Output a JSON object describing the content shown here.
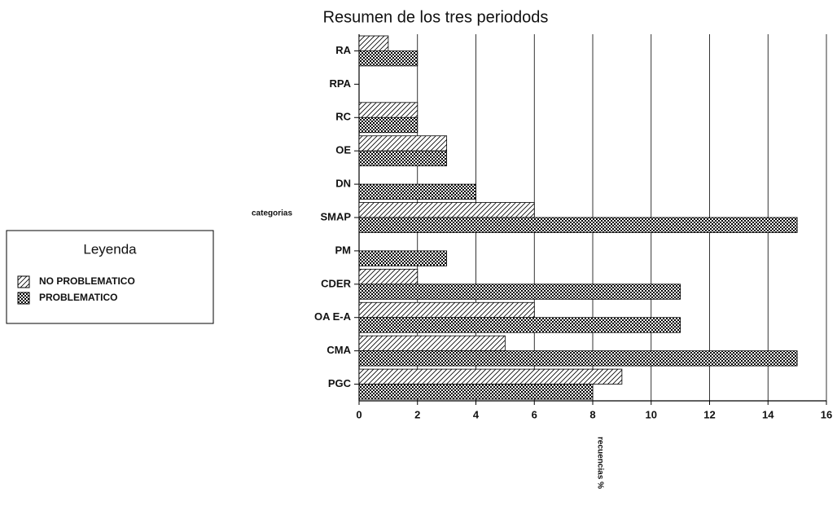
{
  "chart_data": {
    "type": "barh",
    "title": "Resumen de los tres periodods",
    "x_label": "recuencias %",
    "y_label": "categorias",
    "categories": [
      "RA",
      "RPA",
      "RC",
      "OE",
      "DN",
      "SMAP",
      "PM",
      "CDER",
      "OA E-A",
      "CMA",
      "PGC"
    ],
    "series": [
      {
        "name": "NO PROBLEMATICO",
        "color": "#000000",
        "pattern": "hatch",
        "values": [
          1,
          0,
          2,
          3,
          0,
          6,
          0,
          2,
          6,
          5,
          9
        ]
      },
      {
        "name": "PROBLEMATICO",
        "color": "#000000",
        "pattern": "checker",
        "values": [
          2,
          0,
          2,
          3,
          4,
          15,
          3,
          11,
          11,
          15,
          8
        ]
      }
    ],
    "legend_title": "Leyenda",
    "xlim": [
      0,
      16
    ],
    "xticks": [
      0,
      2,
      4,
      6,
      8,
      10,
      12,
      14,
      16
    ],
    "grid": true,
    "legend": "left"
  }
}
